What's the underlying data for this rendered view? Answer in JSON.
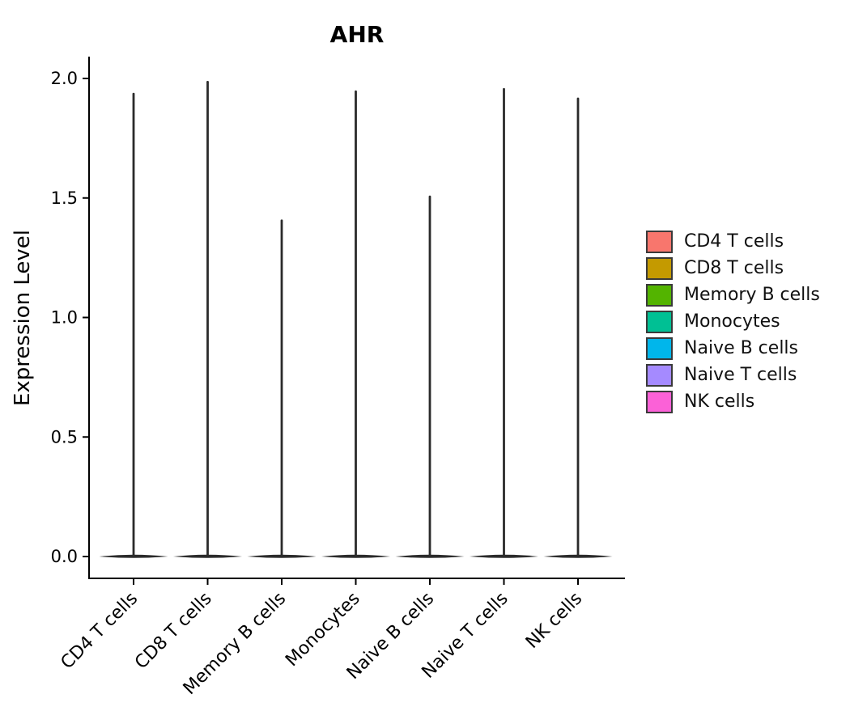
{
  "title": "AHR",
  "chart_data": {
    "type": "violin",
    "title": "AHR",
    "ylabel": "Expression Level",
    "xlabel": "",
    "ylim": [
      0,
      2.09
    ],
    "grid": false,
    "legend_position": "right",
    "violin_color": "#2b2b2b",
    "distribution_note": "each violin collapses to a wide flat base at 0 with a thin spike up to its maximum expression value",
    "yticks": [
      {
        "value": 0.0,
        "label": "0.0"
      },
      {
        "value": 0.5,
        "label": "0.5"
      },
      {
        "value": 1.0,
        "label": "1.0"
      },
      {
        "value": 1.5,
        "label": "1.5"
      },
      {
        "value": 2.0,
        "label": "2.0"
      }
    ],
    "categories": [
      {
        "label": "CD4 T cells",
        "color": "#F8766D",
        "max": 1.94
      },
      {
        "label": "CD8 T cells",
        "color": "#C49A00",
        "max": 1.99
      },
      {
        "label": "Memory B cells",
        "color": "#53B400",
        "max": 1.41
      },
      {
        "label": "Monocytes",
        "color": "#00C094",
        "max": 1.95
      },
      {
        "label": "Naive B cells",
        "color": "#00B6EB",
        "max": 1.51
      },
      {
        "label": "Naive T cells",
        "color": "#A58AFF",
        "max": 1.96
      },
      {
        "label": "NK cells",
        "color": "#FB61D7",
        "max": 1.92
      }
    ]
  }
}
